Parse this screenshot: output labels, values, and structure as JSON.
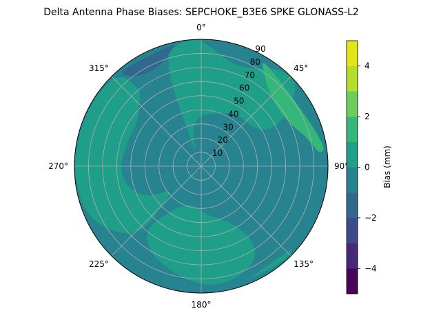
{
  "chart_data": {
    "type": "heatmap",
    "title": "Delta Antenna Phase Biases: SEPCHOKE_B3E6   SPKE GLONASS-L2",
    "projection": "polar",
    "azimuth_ticks": [
      {
        "deg": 0,
        "label": "0°"
      },
      {
        "deg": 45,
        "label": "45°"
      },
      {
        "deg": 90,
        "label": "90°"
      },
      {
        "deg": 135,
        "label": "135°"
      },
      {
        "deg": 180,
        "label": "180°"
      },
      {
        "deg": 225,
        "label": "225°"
      },
      {
        "deg": 270,
        "label": "270°"
      },
      {
        "deg": 315,
        "label": "315°"
      }
    ],
    "radial_ticks": [
      10,
      20,
      30,
      40,
      50,
      60,
      70,
      80,
      90
    ],
    "radial_tick_labels": [
      "10",
      "20",
      "30",
      "40",
      "50",
      "60",
      "70",
      "80",
      "90"
    ],
    "radial_range": [
      0,
      90
    ],
    "grid": true,
    "background_value": -0.5,
    "regions": [
      {
        "value": 0.5,
        "polygon": [
          [
            335,
            5
          ],
          [
            345,
            25
          ],
          [
            355,
            35
          ],
          [
            10,
            38
          ],
          [
            25,
            42
          ],
          [
            38,
            45
          ],
          [
            50,
            45
          ],
          [
            60,
            50
          ],
          [
            62,
            60
          ],
          [
            58,
            72
          ],
          [
            50,
            90
          ],
          [
            40,
            90
          ],
          [
            30,
            80
          ],
          [
            20,
            75
          ],
          [
            10,
            80
          ],
          [
            0,
            90
          ],
          [
            350,
            90
          ],
          [
            340,
            80
          ]
        ]
      },
      {
        "value": 1.5,
        "polygon": [
          [
            28,
            90
          ],
          [
            35,
            78
          ],
          [
            45,
            70
          ],
          [
            55,
            68
          ],
          [
            65,
            70
          ],
          [
            75,
            78
          ],
          [
            85,
            85
          ],
          [
            80,
            90
          ]
        ]
      },
      {
        "value": 0.5,
        "polygon": [
          [
            230,
            25
          ],
          [
            240,
            45
          ],
          [
            255,
            55
          ],
          [
            270,
            58
          ],
          [
            290,
            55
          ],
          [
            305,
            55
          ],
          [
            315,
            62
          ],
          [
            322,
            70
          ],
          [
            318,
            90
          ],
          [
            300,
            90
          ],
          [
            285,
            90
          ],
          [
            270,
            90
          ],
          [
            255,
            90
          ],
          [
            240,
            85
          ],
          [
            225,
            70
          ],
          [
            222,
            55
          ],
          [
            225,
            40
          ]
        ]
      },
      {
        "value": 0.5,
        "polygon": [
          [
            150,
            48
          ],
          [
            160,
            40
          ],
          [
            172,
            35
          ],
          [
            185,
            30
          ],
          [
            200,
            28
          ],
          [
            215,
            40
          ],
          [
            222,
            60
          ],
          [
            210,
            72
          ],
          [
            195,
            78
          ],
          [
            180,
            85
          ],
          [
            165,
            85
          ],
          [
            150,
            78
          ],
          [
            145,
            65
          ]
        ]
      },
      {
        "value": 0.5,
        "polygon": [
          [
            130,
            88
          ],
          [
            140,
            85
          ],
          [
            150,
            85
          ],
          [
            160,
            88
          ],
          [
            170,
            90
          ],
          [
            140,
            90
          ]
        ]
      },
      {
        "value": -1.5,
        "polygon": [
          [
            318,
            90
          ],
          [
            322,
            80
          ],
          [
            330,
            76
          ],
          [
            340,
            78
          ],
          [
            345,
            85
          ],
          [
            350,
            90
          ]
        ]
      }
    ],
    "colorbar": {
      "label": "Bias (mm)",
      "levels": [
        -5,
        -4,
        -3,
        -2,
        -1,
        0,
        1,
        2,
        3,
        4,
        5
      ],
      "colors": [
        "#450457",
        "#482979",
        "#3e4a89",
        "#31688e",
        "#26838f",
        "#1f9e89",
        "#35b779",
        "#6ccd5a",
        "#b5de2c",
        "#e5e419"
      ],
      "ticks": [
        -4,
        -2,
        0,
        2,
        4
      ],
      "tick_labels": [
        "−4",
        "−2",
        "0",
        "2",
        "4"
      ]
    }
  }
}
